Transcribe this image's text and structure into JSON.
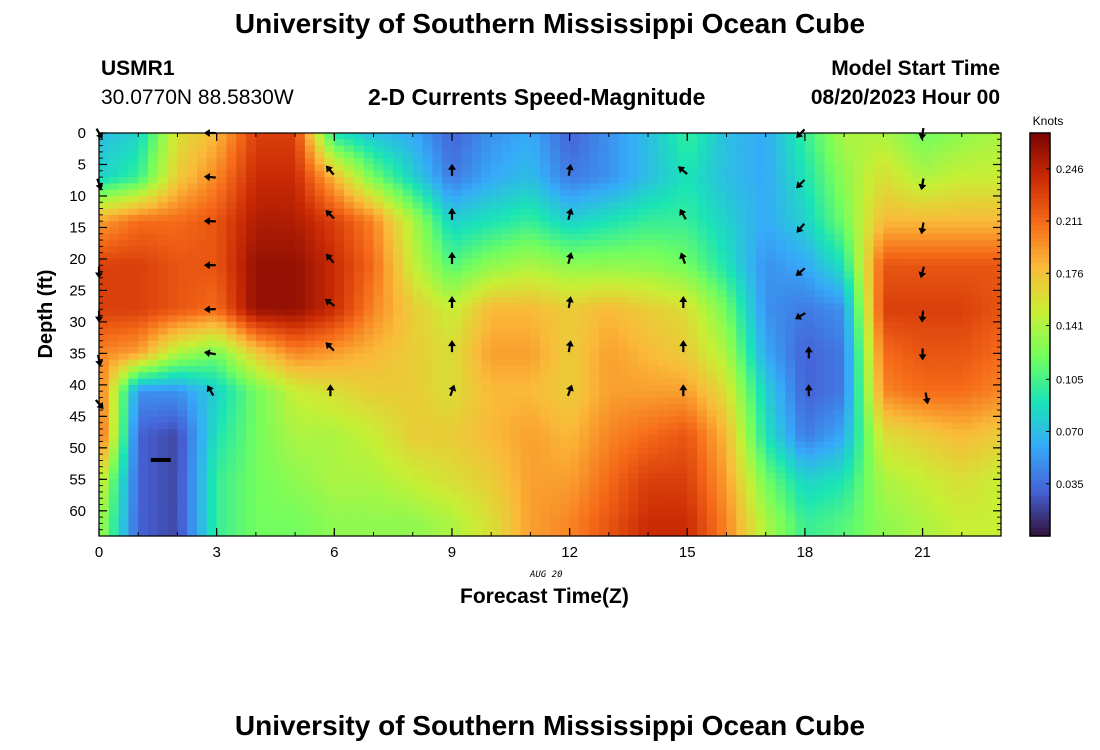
{
  "page": {
    "title_top": "University of Southern Mississippi Ocean Cube",
    "title_bottom": "University of Southern Mississippi Ocean Cube",
    "station_id": "USMR1",
    "station_coords": "30.0770N  88.5830W",
    "plot_title": "2-D Currents Speed-Magnitude",
    "model_start_label": "Model Start Time",
    "model_start_value": "08/20/2023 Hour 00",
    "date_stamp": "AUG 20"
  },
  "colors": {
    "colormap": [
      "#30123b",
      "#4662d7",
      "#36aaf9",
      "#1ae4b6",
      "#72fe5e",
      "#c8ef34",
      "#faba39",
      "#f66b19",
      "#ca2a04",
      "#7a0403"
    ]
  },
  "chart_data": {
    "type": "heatmap",
    "title": "2-D Currents Speed-Magnitude",
    "xlabel": "Forecast Time(Z)",
    "ylabel": "Depth (ft)",
    "colorbar_label": "Knots",
    "x_ticks": [
      0,
      3,
      6,
      9,
      12,
      15,
      18,
      21
    ],
    "x_range": [
      0,
      23
    ],
    "y_ticks": [
      0,
      5,
      10,
      15,
      20,
      25,
      30,
      35,
      40,
      45,
      50,
      55,
      60
    ],
    "y_range": [
      0,
      64
    ],
    "y_inverted": true,
    "colorbar_ticks": [
      "0.035",
      "0.070",
      "0.105",
      "0.141",
      "0.176",
      "0.211",
      "0.246"
    ],
    "colorbar_range": [
      0.0,
      0.27
    ],
    "hours": [
      0,
      1,
      2,
      3,
      4,
      5,
      6,
      7,
      8,
      9,
      10,
      11,
      12,
      13,
      14,
      15,
      16,
      17,
      18,
      19,
      20,
      21,
      22,
      23
    ],
    "depths": [
      0,
      7,
      14,
      21,
      28,
      35,
      41,
      48,
      55,
      62
    ],
    "speed_knots": [
      [
        0.07,
        0.08,
        0.16,
        0.18,
        0.23,
        0.23,
        0.09,
        0.07,
        0.06,
        0.03,
        0.05,
        0.06,
        0.03,
        0.05,
        0.07,
        0.1,
        0.07,
        0.06,
        0.1,
        0.14,
        0.14,
        0.12,
        0.13,
        0.14
      ],
      [
        0.08,
        0.1,
        0.17,
        0.2,
        0.24,
        0.24,
        0.18,
        0.12,
        0.08,
        0.04,
        0.06,
        0.07,
        0.04,
        0.05,
        0.07,
        0.09,
        0.07,
        0.06,
        0.09,
        0.13,
        0.16,
        0.14,
        0.15,
        0.15
      ],
      [
        0.19,
        0.21,
        0.21,
        0.22,
        0.25,
        0.25,
        0.23,
        0.2,
        0.14,
        0.08,
        0.09,
        0.1,
        0.08,
        0.09,
        0.1,
        0.1,
        0.08,
        0.06,
        0.08,
        0.12,
        0.18,
        0.18,
        0.18,
        0.18
      ],
      [
        0.23,
        0.23,
        0.22,
        0.22,
        0.26,
        0.26,
        0.24,
        0.21,
        0.15,
        0.11,
        0.13,
        0.14,
        0.13,
        0.13,
        0.13,
        0.12,
        0.09,
        0.05,
        0.06,
        0.09,
        0.22,
        0.22,
        0.22,
        0.22
      ],
      [
        0.23,
        0.23,
        0.22,
        0.21,
        0.26,
        0.26,
        0.24,
        0.2,
        0.17,
        0.15,
        0.18,
        0.18,
        0.17,
        0.18,
        0.17,
        0.16,
        0.12,
        0.05,
        0.04,
        0.05,
        0.23,
        0.23,
        0.23,
        0.22
      ],
      [
        0.2,
        0.19,
        0.14,
        0.12,
        0.17,
        0.2,
        0.19,
        0.18,
        0.17,
        0.16,
        0.19,
        0.19,
        0.17,
        0.19,
        0.18,
        0.17,
        0.14,
        0.06,
        0.03,
        0.04,
        0.21,
        0.22,
        0.22,
        0.21
      ],
      [
        0.21,
        0.05,
        0.05,
        0.08,
        0.12,
        0.15,
        0.16,
        0.17,
        0.17,
        0.16,
        0.18,
        0.18,
        0.17,
        0.19,
        0.19,
        0.19,
        0.16,
        0.08,
        0.03,
        0.04,
        0.2,
        0.21,
        0.21,
        0.2
      ],
      [
        0.22,
        0.03,
        0.02,
        0.09,
        0.12,
        0.14,
        0.14,
        0.15,
        0.17,
        0.17,
        0.18,
        0.19,
        0.18,
        0.2,
        0.21,
        0.22,
        0.18,
        0.09,
        0.04,
        0.06,
        0.16,
        0.17,
        0.18,
        0.17
      ],
      [
        0.16,
        0.03,
        0.02,
        0.1,
        0.12,
        0.13,
        0.14,
        0.14,
        0.15,
        0.16,
        0.17,
        0.19,
        0.19,
        0.21,
        0.23,
        0.23,
        0.19,
        0.12,
        0.08,
        0.09,
        0.14,
        0.15,
        0.16,
        0.15
      ],
      [
        0.14,
        0.03,
        0.02,
        0.1,
        0.12,
        0.12,
        0.13,
        0.13,
        0.13,
        0.14,
        0.16,
        0.19,
        0.2,
        0.22,
        0.24,
        0.24,
        0.2,
        0.14,
        0.1,
        0.11,
        0.13,
        0.14,
        0.15,
        0.15
      ]
    ],
    "vectors": [
      {
        "x": 0,
        "y": 0,
        "angle": 150
      },
      {
        "x": 0,
        "y": 8,
        "angle": 160
      },
      {
        "x": 0,
        "y": 22,
        "angle": 180
      },
      {
        "x": 0,
        "y": 29,
        "angle": 180
      },
      {
        "x": 0,
        "y": 36,
        "angle": 170
      },
      {
        "x": 0,
        "y": 43,
        "angle": 140
      },
      {
        "x": 2.85,
        "y": 0,
        "angle": 270
      },
      {
        "x": 2.85,
        "y": 7,
        "angle": 275
      },
      {
        "x": 2.85,
        "y": 14,
        "angle": 272
      },
      {
        "x": 2.85,
        "y": 21,
        "angle": 270
      },
      {
        "x": 2.85,
        "y": 28,
        "angle": 268
      },
      {
        "x": 2.85,
        "y": 35,
        "angle": 280
      },
      {
        "x": 2.85,
        "y": 41,
        "angle": 330
      },
      {
        "x": 5.9,
        "y": 6,
        "angle": 320
      },
      {
        "x": 5.9,
        "y": 13,
        "angle": 315
      },
      {
        "x": 5.9,
        "y": 20,
        "angle": 320
      },
      {
        "x": 5.9,
        "y": 27,
        "angle": 305
      },
      {
        "x": 5.9,
        "y": 34,
        "angle": 315
      },
      {
        "x": 5.9,
        "y": 41,
        "angle": 0
      },
      {
        "x": 9,
        "y": 6,
        "angle": 0
      },
      {
        "x": 9,
        "y": 13,
        "angle": 0
      },
      {
        "x": 9,
        "y": 20,
        "angle": 0
      },
      {
        "x": 9,
        "y": 27,
        "angle": 0
      },
      {
        "x": 9,
        "y": 34,
        "angle": 0
      },
      {
        "x": 9,
        "y": 41,
        "angle": 20
      },
      {
        "x": 12,
        "y": 6,
        "angle": 10
      },
      {
        "x": 12,
        "y": 13,
        "angle": 15
      },
      {
        "x": 12,
        "y": 20,
        "angle": 15
      },
      {
        "x": 12,
        "y": 27,
        "angle": 10
      },
      {
        "x": 12,
        "y": 34,
        "angle": 10
      },
      {
        "x": 12,
        "y": 41,
        "angle": 20
      },
      {
        "x": 14.9,
        "y": 6,
        "angle": 310
      },
      {
        "x": 14.9,
        "y": 13,
        "angle": 330
      },
      {
        "x": 14.9,
        "y": 20,
        "angle": 340
      },
      {
        "x": 14.9,
        "y": 27,
        "angle": 0
      },
      {
        "x": 14.9,
        "y": 34,
        "angle": 0
      },
      {
        "x": 14.9,
        "y": 41,
        "angle": 0
      },
      {
        "x": 17.9,
        "y": 0,
        "angle": 225
      },
      {
        "x": 17.9,
        "y": 8,
        "angle": 225
      },
      {
        "x": 17.9,
        "y": 15,
        "angle": 220
      },
      {
        "x": 17.9,
        "y": 22,
        "angle": 230
      },
      {
        "x": 17.9,
        "y": 29,
        "angle": 240
      },
      {
        "x": 18.1,
        "y": 35,
        "angle": 0
      },
      {
        "x": 18.1,
        "y": 41,
        "angle": 0
      },
      {
        "x": 21,
        "y": 0,
        "angle": 190
      },
      {
        "x": 21,
        "y": 8,
        "angle": 190
      },
      {
        "x": 21,
        "y": 15,
        "angle": 190
      },
      {
        "x": 21,
        "y": 22,
        "angle": 195
      },
      {
        "x": 21,
        "y": 29,
        "angle": 185
      },
      {
        "x": 21,
        "y": 35,
        "angle": 180
      },
      {
        "x": 21.1,
        "y": 42,
        "angle": 170
      }
    ]
  }
}
